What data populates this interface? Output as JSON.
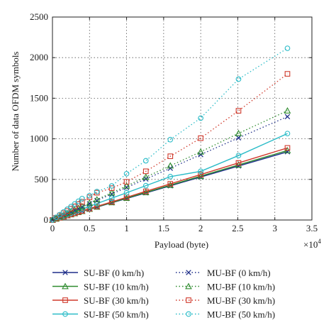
{
  "chart_data": {
    "type": "line",
    "xlabel": "Payload (byte)",
    "ylabel": "Number of data OFDM symbols",
    "x_multiplier_label": "×10",
    "x_multiplier_exp": "4",
    "xlim": [
      0,
      35000
    ],
    "ylim": [
      0,
      2500
    ],
    "xticks": [
      0,
      5000,
      10000,
      15000,
      20000,
      25000,
      30000,
      35000
    ],
    "xtick_labels": [
      "0",
      "0.5",
      "1",
      "1.5",
      "2",
      "2.5",
      "3",
      "3.5"
    ],
    "yticks": [
      0,
      500,
      1000,
      1500,
      2000,
      2500
    ],
    "ytick_labels": [
      "0",
      "500",
      "1000",
      "1500",
      "2000",
      "2500"
    ],
    "grid": true,
    "legend_position": "bottom, two columns",
    "x": [
      0,
      500,
      1000,
      1500,
      2000,
      2500,
      3000,
      3500,
      4000,
      5000,
      6000,
      8000,
      10000,
      12600,
      15900,
      20000,
      25100,
      31700
    ],
    "series": [
      {
        "name": "SU-BF (0 km/h)",
        "color": "#1f2f8a",
        "style": "solid",
        "marker": "x",
        "values": [
          0,
          14,
          27,
          40,
          53,
          66,
          80,
          93,
          106,
          133,
          159,
          212,
          265,
          334,
          421,
          530,
          665,
          840
        ]
      },
      {
        "name": "SU-BF (10 km/h)",
        "color": "#2e8b2e",
        "style": "solid",
        "marker": "triangle",
        "values": [
          0,
          14,
          27,
          41,
          54,
          68,
          81,
          95,
          108,
          135,
          162,
          216,
          270,
          340,
          429,
          540,
          678,
          856
        ]
      },
      {
        "name": "SU-BF (30 km/h)",
        "color": "#d03a2c",
        "style": "solid",
        "marker": "square",
        "values": [
          0,
          14,
          28,
          42,
          56,
          70,
          84,
          98,
          112,
          140,
          168,
          224,
          280,
          353,
          445,
          560,
          703,
          888
        ]
      },
      {
        "name": "SU-BF (50 km/h)",
        "color": "#2bbcc8",
        "style": "solid",
        "marker": "circle",
        "values": [
          0,
          17,
          34,
          50,
          67,
          84,
          101,
          118,
          134,
          168,
          202,
          269,
          336,
          423,
          534,
          600,
          794,
          1065
        ]
      },
      {
        "name": "MU-BF (0 km/h)",
        "color": "#1f2f8a",
        "style": "dotted",
        "marker": "x",
        "values": [
          0,
          20,
          40,
          60,
          80,
          100,
          120,
          140,
          160,
          200,
          240,
          320,
          400,
          505,
          637,
          805,
          1012,
          1273
        ]
      },
      {
        "name": "MU-BF (10 km/h)",
        "color": "#2e8b2e",
        "style": "dotted",
        "marker": "triangle",
        "values": [
          0,
          21,
          42,
          63,
          84,
          105,
          126,
          147,
          168,
          210,
          252,
          336,
          420,
          530,
          668,
          840,
          1067,
          1346
        ]
      },
      {
        "name": "MU-BF (30 km/h)",
        "color": "#d03a2c",
        "style": "dotted",
        "marker": "square",
        "values": [
          0,
          28,
          56,
          84,
          112,
          140,
          168,
          196,
          224,
          280,
          336,
          392,
          470,
          600,
          785,
          1008,
          1345,
          1800
        ]
      },
      {
        "name": "MU-BF (50 km/h)",
        "color": "#2bbcc8",
        "style": "dotted",
        "marker": "circle",
        "values": [
          0,
          33,
          66,
          99,
          132,
          165,
          198,
          231,
          264,
          300,
          350,
          420,
          570,
          730,
          990,
          1255,
          1735,
          2115
        ]
      }
    ]
  }
}
